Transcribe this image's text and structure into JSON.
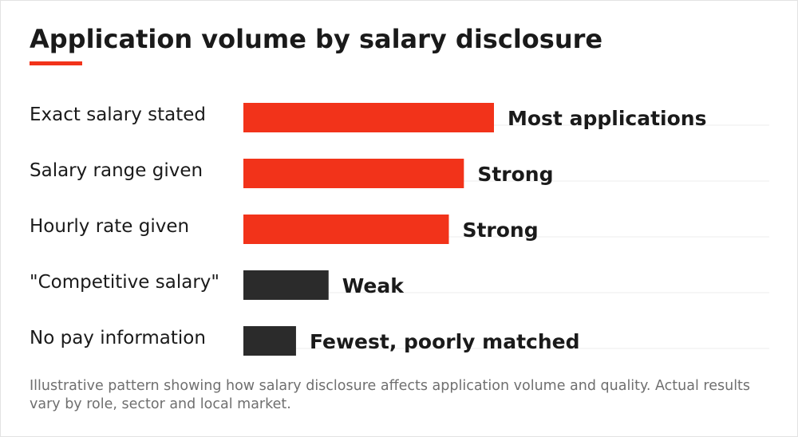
{
  "title": "Application volume by salary disclosure",
  "colors": {
    "accent": "#f2331a",
    "highlight": "#f2331a",
    "muted": "#2b2b2b",
    "gridline": "#eeeeee"
  },
  "note": "Illustrative pattern showing how salary disclosure affects application volume and quality. Actual results vary by role, sector and local market.",
  "chart_data": {
    "type": "bar",
    "orientation": "horizontal",
    "categories": [
      "Exact salary stated",
      "Salary range given",
      "Hourly rate given",
      "\"Competitive salary\"",
      "No pay information"
    ],
    "values": [
      100,
      88,
      82,
      34,
      21
    ],
    "value_labels": [
      "Most applications",
      "Strong",
      "Strong",
      "Weak",
      "Fewest, poorly matched"
    ],
    "bar_colors": [
      "highlight",
      "highlight",
      "highlight",
      "muted",
      "muted"
    ],
    "xlim": [
      0,
      210
    ],
    "axis_ticks": false,
    "grid": false,
    "legend": false
  }
}
